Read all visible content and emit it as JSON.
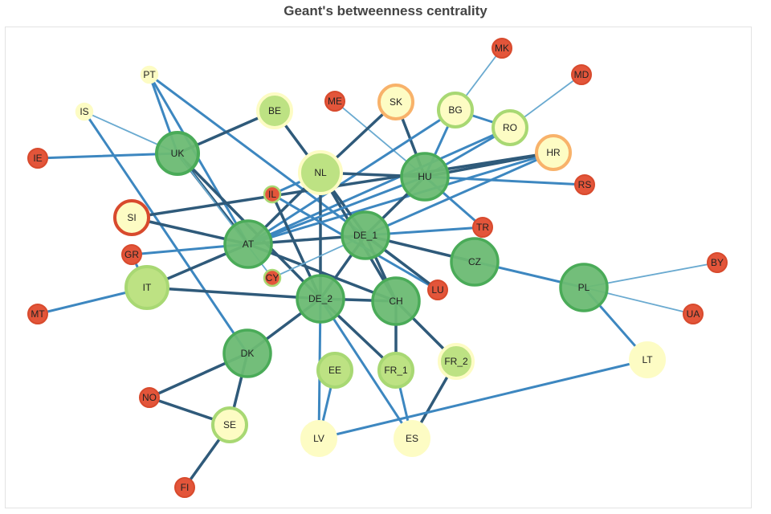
{
  "title": "Geant's betweenness centrality",
  "colors": {
    "edge_dark": "#2f5a7a",
    "edge_blue": "#3d87c0",
    "edge_light": "#6aaad0",
    "green_fill": "#6bbb73",
    "green_stroke": "#4aab58",
    "lightgreen_fill": "#bde283",
    "lightgreen_stroke": "#a8d873",
    "yellow_fill": "#fdfcc4",
    "red_fill": "#e3553a",
    "red_stroke": "#d84a2d",
    "orange_stroke": "#f8b26a"
  },
  "nodes": [
    {
      "id": "PT",
      "label": "PT",
      "fill": "yellow",
      "ring": "yellow",
      "size": "xs"
    },
    {
      "id": "IS",
      "label": "IS",
      "fill": "yellow",
      "ring": "yellow",
      "size": "xs"
    },
    {
      "id": "IE",
      "label": "IE",
      "fill": "red",
      "ring": "red",
      "size": "sm"
    },
    {
      "id": "UK",
      "label": "UK",
      "fill": "green",
      "ring": "green",
      "size": "lg"
    },
    {
      "id": "BE",
      "label": "BE",
      "fill": "lightgreen",
      "ring": "yellow",
      "size": "md"
    },
    {
      "id": "ME",
      "label": "ME",
      "fill": "red",
      "ring": "red",
      "size": "sm"
    },
    {
      "id": "SK",
      "label": "SK",
      "fill": "yellow",
      "ring": "orange",
      "size": "md"
    },
    {
      "id": "BG",
      "label": "BG",
      "fill": "yellow",
      "ring": "lightgreen",
      "size": "md"
    },
    {
      "id": "MK",
      "label": "MK",
      "fill": "red",
      "ring": "red",
      "size": "sm"
    },
    {
      "id": "MD",
      "label": "MD",
      "fill": "red",
      "ring": "red",
      "size": "sm"
    },
    {
      "id": "RO",
      "label": "RO",
      "fill": "yellow",
      "ring": "lightgreen",
      "size": "md"
    },
    {
      "id": "HR",
      "label": "HR",
      "fill": "yellow",
      "ring": "orange",
      "size": "md"
    },
    {
      "id": "NL",
      "label": "NL",
      "fill": "lightgreen",
      "ring": "yellow",
      "size": "lg"
    },
    {
      "id": "HU",
      "label": "HU",
      "fill": "green",
      "ring": "green",
      "size": "xl"
    },
    {
      "id": "RS",
      "label": "RS",
      "fill": "red",
      "ring": "red",
      "size": "sm"
    },
    {
      "id": "IL",
      "label": "IL",
      "fill": "red",
      "ring": "lightgreen",
      "size": "xs"
    },
    {
      "id": "SI",
      "label": "SI",
      "fill": "yellow",
      "ring": "red",
      "size": "md"
    },
    {
      "id": "AT",
      "label": "AT",
      "fill": "green",
      "ring": "green",
      "size": "xl"
    },
    {
      "id": "DE_1",
      "label": "DE_1",
      "fill": "green",
      "ring": "green",
      "size": "xl"
    },
    {
      "id": "TR",
      "label": "TR",
      "fill": "red",
      "ring": "red",
      "size": "sm"
    },
    {
      "id": "GR",
      "label": "GR",
      "fill": "red",
      "ring": "red",
      "size": "sm"
    },
    {
      "id": "CY",
      "label": "CY",
      "fill": "red",
      "ring": "lightgreen",
      "size": "xs"
    },
    {
      "id": "CZ",
      "label": "CZ",
      "fill": "green",
      "ring": "green",
      "size": "xl"
    },
    {
      "id": "BY",
      "label": "BY",
      "fill": "red",
      "ring": "red",
      "size": "sm"
    },
    {
      "id": "IT",
      "label": "IT",
      "fill": "lightgreen",
      "ring": "lightgreen",
      "size": "lg"
    },
    {
      "id": "MT",
      "label": "MT",
      "fill": "red",
      "ring": "red",
      "size": "sm"
    },
    {
      "id": "DE_2",
      "label": "DE_2",
      "fill": "green",
      "ring": "green",
      "size": "xl"
    },
    {
      "id": "CH",
      "label": "CH",
      "fill": "green",
      "ring": "green",
      "size": "xl"
    },
    {
      "id": "LU",
      "label": "LU",
      "fill": "red",
      "ring": "red",
      "size": "sm"
    },
    {
      "id": "PL",
      "label": "PL",
      "fill": "green",
      "ring": "green",
      "size": "xl"
    },
    {
      "id": "UA",
      "label": "UA",
      "fill": "red",
      "ring": "red",
      "size": "sm"
    },
    {
      "id": "DK",
      "label": "DK",
      "fill": "green",
      "ring": "green",
      "size": "xl"
    },
    {
      "id": "EE",
      "label": "EE",
      "fill": "lightgreen",
      "ring": "lightgreen",
      "size": "md"
    },
    {
      "id": "FR_1",
      "label": "FR_1",
      "fill": "lightgreen",
      "ring": "lightgreen",
      "size": "md"
    },
    {
      "id": "FR_2",
      "label": "FR_2",
      "fill": "lightgreen",
      "ring": "yellow",
      "size": "md"
    },
    {
      "id": "LT",
      "label": "LT",
      "fill": "yellow",
      "ring": "yellow",
      "size": "md"
    },
    {
      "id": "NO",
      "label": "NO",
      "fill": "red",
      "ring": "red",
      "size": "sm"
    },
    {
      "id": "SE",
      "label": "SE",
      "fill": "yellow",
      "ring": "lightgreen",
      "size": "md"
    },
    {
      "id": "LV",
      "label": "LV",
      "fill": "yellow",
      "ring": "yellow",
      "size": "md"
    },
    {
      "id": "ES",
      "label": "ES",
      "fill": "yellow",
      "ring": "yellow",
      "size": "md"
    },
    {
      "id": "FI",
      "label": "FI",
      "fill": "red",
      "ring": "red",
      "size": "sm"
    }
  ],
  "edges": [
    [
      "PT",
      "UK",
      "blue"
    ],
    [
      "PT",
      "AT",
      "blue"
    ],
    [
      "PT",
      "LU",
      "blue"
    ],
    [
      "IS",
      "UK",
      "light"
    ],
    [
      "IS",
      "DK",
      "blue"
    ],
    [
      "IE",
      "UK",
      "blue"
    ],
    [
      "UK",
      "BE",
      "dark"
    ],
    [
      "UK",
      "AT",
      "dark"
    ],
    [
      "UK",
      "DE_2",
      "dark"
    ],
    [
      "UK",
      "CY",
      "light"
    ],
    [
      "BE",
      "NL",
      "dark"
    ],
    [
      "ME",
      "HU",
      "light"
    ],
    [
      "SK",
      "HU",
      "dark"
    ],
    [
      "SK",
      "NL",
      "dark"
    ],
    [
      "BG",
      "HU",
      "blue"
    ],
    [
      "BG",
      "AT",
      "blue"
    ],
    [
      "BG",
      "RO",
      "blue"
    ],
    [
      "MK",
      "BG",
      "light"
    ],
    [
      "MD",
      "RO",
      "light"
    ],
    [
      "RO",
      "HU",
      "blue"
    ],
    [
      "RO",
      "AT",
      "blue"
    ],
    [
      "HR",
      "HU",
      "dark"
    ],
    [
      "HR",
      "AT",
      "blue"
    ],
    [
      "HR",
      "SI",
      "dark"
    ],
    [
      "HR",
      "DE_1",
      "blue"
    ],
    [
      "NL",
      "DE_1",
      "dark"
    ],
    [
      "NL",
      "DE_2",
      "dark"
    ],
    [
      "NL",
      "AT",
      "dark"
    ],
    [
      "NL",
      "IL",
      "blue"
    ],
    [
      "NL",
      "HU",
      "dark"
    ],
    [
      "NL",
      "CH",
      "dark"
    ],
    [
      "HU",
      "RS",
      "blue"
    ],
    [
      "HU",
      "TR",
      "blue"
    ],
    [
      "HU",
      "DE_1",
      "dark"
    ],
    [
      "HU",
      "AT",
      "blue"
    ],
    [
      "IL",
      "LU",
      "blue"
    ],
    [
      "IL",
      "DE_2",
      "dark"
    ],
    [
      "SI",
      "AT",
      "dark"
    ],
    [
      "AT",
      "DE_1",
      "dark"
    ],
    [
      "AT",
      "GR",
      "blue"
    ],
    [
      "AT",
      "IT",
      "dark"
    ],
    [
      "AT",
      "CH",
      "dark"
    ],
    [
      "DE_1",
      "TR",
      "blue"
    ],
    [
      "DE_1",
      "DE_2",
      "dark"
    ],
    [
      "DE_1",
      "CH",
      "dark"
    ],
    [
      "DE_1",
      "LU",
      "dark"
    ],
    [
      "DE_1",
      "CZ",
      "dark"
    ],
    [
      "DE_1",
      "CY",
      "light"
    ],
    [
      "GR",
      "IT",
      "blue"
    ],
    [
      "CZ",
      "PL",
      "blue"
    ],
    [
      "PL",
      "BY",
      "light"
    ],
    [
      "PL",
      "UA",
      "light"
    ],
    [
      "PL",
      "LT",
      "blue"
    ],
    [
      "IT",
      "MT",
      "blue"
    ],
    [
      "IT",
      "DE_2",
      "dark"
    ],
    [
      "DE_2",
      "CH",
      "dark"
    ],
    [
      "DE_2",
      "DK",
      "dark"
    ],
    [
      "DE_2",
      "FR_1",
      "dark"
    ],
    [
      "DE_2",
      "ES",
      "blue"
    ],
    [
      "DE_2",
      "LV",
      "blue"
    ],
    [
      "CH",
      "FR_2",
      "dark"
    ],
    [
      "CH",
      "FR_1",
      "dark"
    ],
    [
      "FR_1",
      "ES",
      "blue"
    ],
    [
      "FR_2",
      "ES",
      "dark"
    ],
    [
      "DK",
      "NO",
      "dark"
    ],
    [
      "DK",
      "SE",
      "dark"
    ],
    [
      "NO",
      "SE",
      "dark"
    ],
    [
      "SE",
      "FI",
      "dark"
    ],
    [
      "EE",
      "LV",
      "blue"
    ],
    [
      "LV",
      "LT",
      "blue"
    ]
  ]
}
